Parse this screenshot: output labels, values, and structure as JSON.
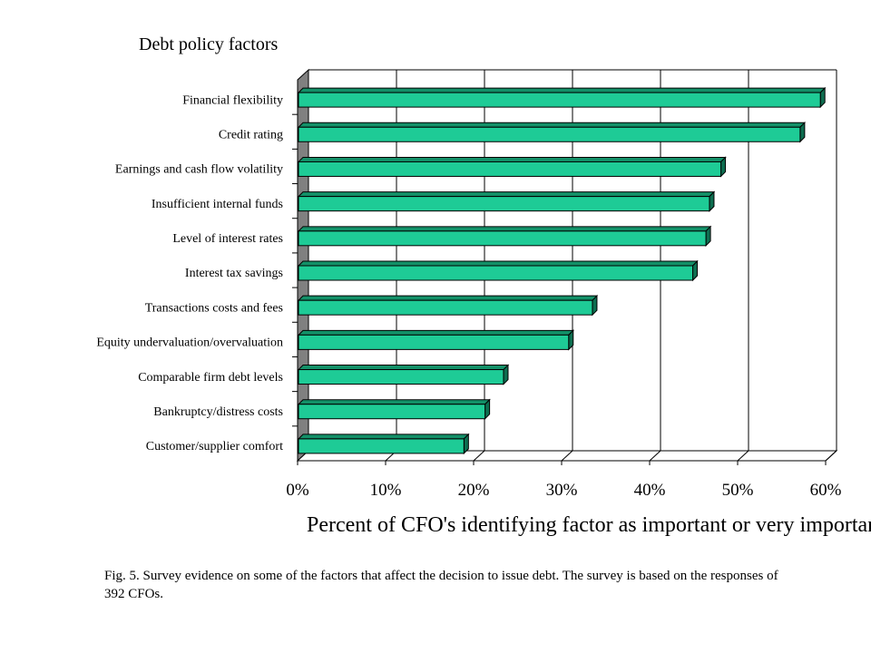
{
  "chart_data": {
    "type": "bar",
    "orientation": "horizontal",
    "title": "Debt policy factors",
    "xlabel": "Percent of CFO's identifying factor as important or very important",
    "ylabel": "",
    "categories": [
      "Financial flexibility",
      "Credit rating",
      "Earnings and cash flow volatility",
      "Insufficient internal funds",
      "Level of interest rates",
      "Interest tax savings",
      "Transactions costs and fees",
      "Equity undervaluation/overvaluation",
      "Comparable firm debt levels",
      "Bankruptcy/distress costs",
      "Customer/supplier comfort"
    ],
    "values": [
      59.4,
      57.1,
      48.1,
      46.8,
      46.4,
      44.9,
      33.5,
      30.8,
      23.4,
      21.3,
      18.9
    ],
    "xlim": [
      0,
      60
    ],
    "xticks": [
      "0%",
      "10%",
      "20%",
      "30%",
      "40%",
      "50%",
      "60%"
    ],
    "grid": "vertical",
    "legend": "none",
    "colors": {
      "bar": "#1ECB96",
      "bar_top": "#139068",
      "bar_side": "#0E6E50",
      "wall": "#808080"
    }
  },
  "caption": "Fig. 5.  Survey evidence on some of the factors that affect the decision to issue debt.  The survey is based on the responses of 392 CFOs."
}
